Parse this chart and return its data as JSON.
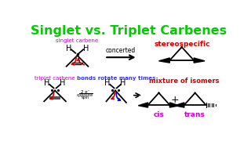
{
  "title": "Singlet vs. Triplet Carbenes",
  "title_color": "#00cc00",
  "title_fontsize": 11.5,
  "bg_color": "#ffffff",
  "singlet_label": "singlet carbene",
  "singlet_label_color": "#cc00cc",
  "triplet_label": "triplet carbene",
  "triplet_label_color": "#cc00cc",
  "bonds_label": "bonds rotate many times",
  "bonds_label_color": "#3333ff",
  "concerted_label": "concerted",
  "stereo_label": "stereospecific",
  "stereo_color": "#cc0000",
  "mixture_label": "mixture of isomers",
  "mixture_color": "#cc0000",
  "cis_label": "cis",
  "cis_color": "#cc00cc",
  "trans_label": "trans",
  "trans_color": "#cc00cc",
  "red": "#cc0000",
  "blue": "#0000cc",
  "black": "#000000"
}
